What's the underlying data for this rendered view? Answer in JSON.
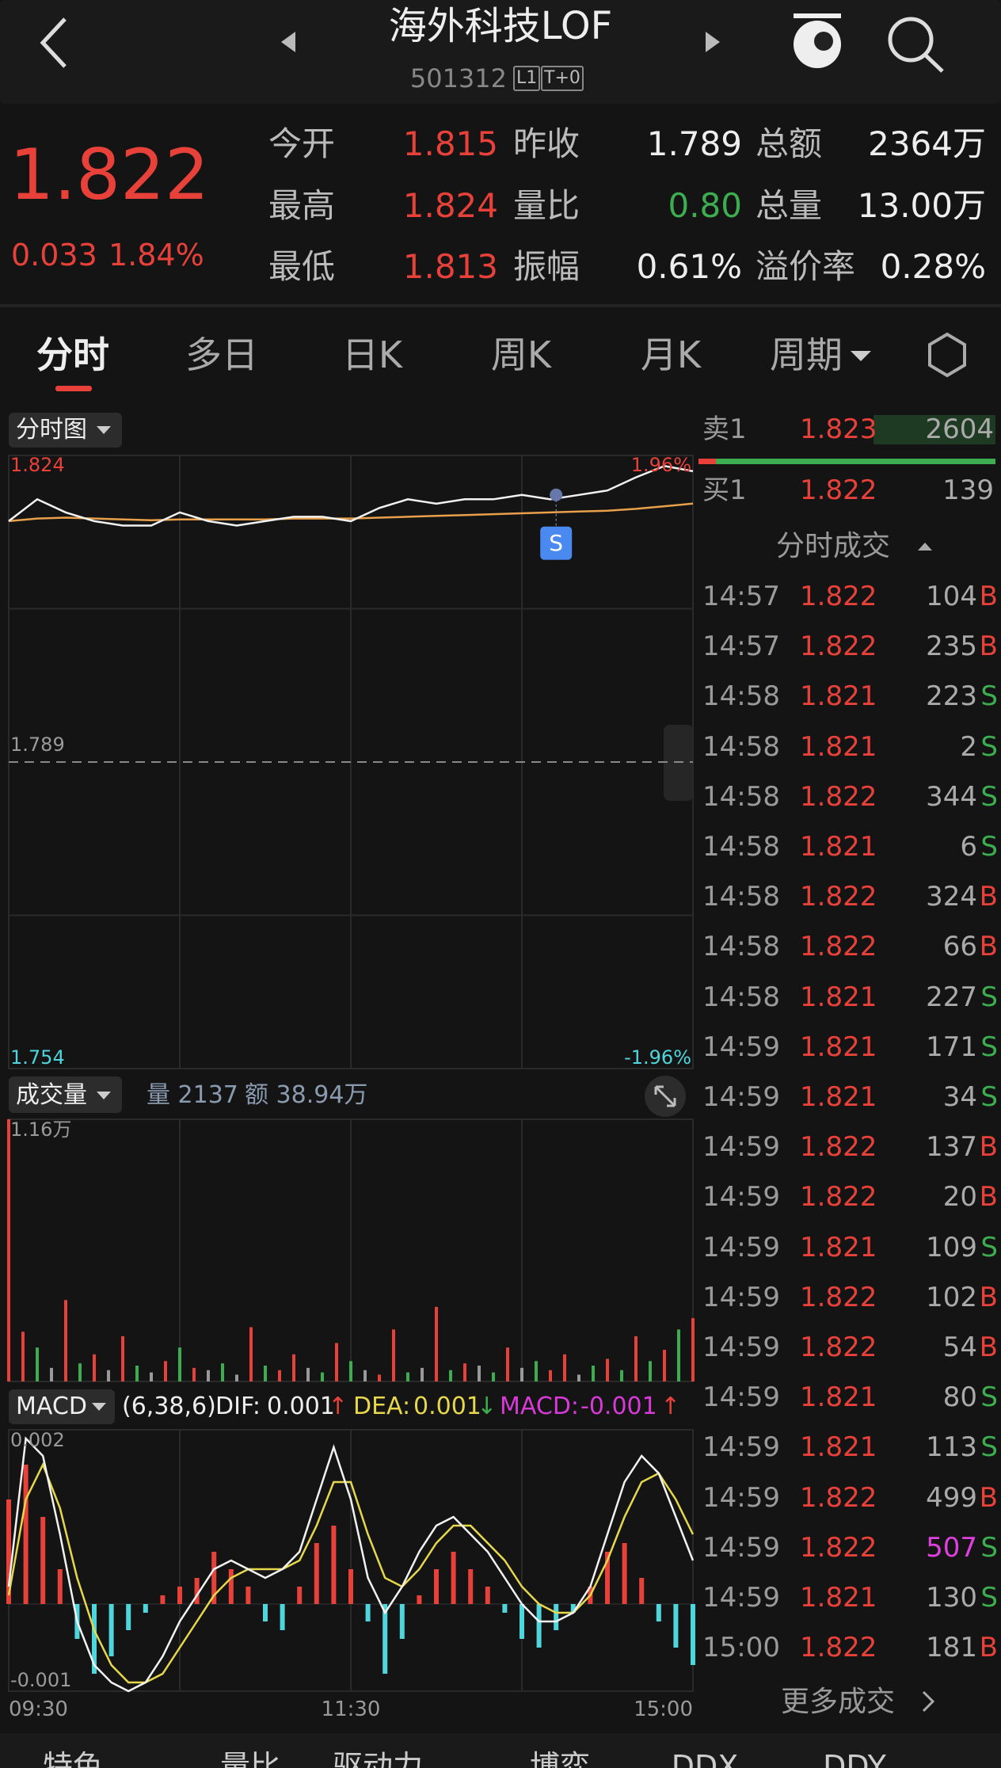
{
  "header": {
    "title": "海外科技LOF",
    "code": "501312",
    "badges": [
      "L1",
      "T+0"
    ]
  },
  "quote": {
    "price": "1.822",
    "change": "0.033",
    "change_pct": "1.84%",
    "stats": [
      [
        "今开",
        "1.815"
      ],
      [
        "昨收",
        "1.789"
      ],
      [
        "总额",
        "2364万"
      ],
      [
        "最高",
        "1.824"
      ],
      [
        "量比",
        "0.80"
      ],
      [
        "总量",
        "13.00万"
      ],
      [
        "最低",
        "1.813"
      ],
      [
        "振幅",
        "0.61%"
      ],
      [
        "溢价率",
        "0.28%"
      ]
    ]
  },
  "tabs": [
    "分时",
    "多日",
    "日K",
    "周K",
    "月K",
    "周期"
  ],
  "chart_data": [
    {
      "type": "line",
      "title": "分时图",
      "xlim": [
        0,
        240
      ],
      "ylim": [
        1.754,
        1.824
      ],
      "yticks": [
        1.754,
        1.789,
        1.824
      ],
      "y2lim": [
        -1.96,
        1.96
      ],
      "y2ticks": [
        {
          "value": -1.96,
          "label": "-1.96%"
        },
        {
          "value": 1.96,
          "label": "1.96%"
        }
      ],
      "x": [
        0,
        10,
        20,
        30,
        40,
        50,
        60,
        70,
        80,
        90,
        100,
        110,
        120,
        130,
        140,
        150,
        160,
        170,
        180,
        190,
        200,
        210,
        220,
        230,
        240
      ],
      "series": [
        {
          "color": "#f2f2f2",
          "values": [
            1.8165,
            1.819,
            1.8175,
            1.8165,
            1.816,
            1.816,
            1.8175,
            1.8165,
            1.816,
            1.8165,
            1.817,
            1.817,
            1.8165,
            1.818,
            1.819,
            1.8185,
            1.819,
            1.819,
            1.8195,
            1.819,
            1.8195,
            1.82,
            1.8215,
            1.8228,
            1.8222
          ]
        },
        {
          "color": "#e8a04a",
          "values": [
            1.8165,
            1.8168,
            1.8169,
            1.8168,
            1.8167,
            1.8166,
            1.8167,
            1.8167,
            1.8167,
            1.8167,
            1.8168,
            1.8168,
            1.8168,
            1.8169,
            1.817,
            1.8171,
            1.8172,
            1.8173,
            1.8174,
            1.8175,
            1.8176,
            1.8177,
            1.8179,
            1.8182,
            1.8185
          ]
        }
      ],
      "annotations": [
        {
          "text": "S",
          "x": 192,
          "y": 1.8195
        }
      ]
    },
    {
      "type": "bar",
      "title": "成交量",
      "volume_label": "量 2137",
      "amount_label": "额 38.94万",
      "xlim": [
        0,
        240
      ],
      "ylim": [
        0,
        11600
      ],
      "yticks": [
        {
          "value": 11600,
          "label": "1.16万"
        }
      ],
      "x": [
        0,
        5,
        10,
        15,
        20,
        25,
        30,
        35,
        40,
        45,
        50,
        55,
        60,
        65,
        70,
        75,
        80,
        85,
        90,
        95,
        100,
        105,
        110,
        115,
        120,
        125,
        130,
        135,
        140,
        145,
        150,
        155,
        160,
        165,
        170,
        175,
        180,
        185,
        190,
        195,
        200,
        205,
        210,
        215,
        220,
        225,
        230,
        235,
        240
      ],
      "values": [
        11600,
        2200,
        1500,
        600,
        3600,
        800,
        1200,
        500,
        2000,
        700,
        400,
        900,
        1500,
        600,
        500,
        800,
        300,
        2400,
        700,
        500,
        1200,
        600,
        400,
        1700,
        900,
        500,
        300,
        2300,
        400,
        600,
        3300,
        500,
        800,
        700,
        400,
        1500,
        600,
        900,
        500,
        1200,
        300,
        700,
        1000,
        500,
        2000,
        900,
        1400,
        2300,
        2800
      ],
      "colors": [
        "#e8413a",
        "#e8413a",
        "#3cae4f",
        "#999999",
        "#e8413a",
        "#3cae4f",
        "#e8413a",
        "#999999",
        "#e8413a",
        "#3cae4f",
        "#999999",
        "#e8413a",
        "#3cae4f",
        "#e8413a",
        "#999999",
        "#3cae4f",
        "#999999",
        "#e8413a",
        "#3cae4f",
        "#e8413a",
        "#e8413a",
        "#999999",
        "#3cae4f",
        "#e8413a",
        "#3cae4f",
        "#999999",
        "#e8413a",
        "#e8413a",
        "#3cae4f",
        "#999999",
        "#e8413a",
        "#3cae4f",
        "#e8413a",
        "#999999",
        "#3cae4f",
        "#e8413a",
        "#999999",
        "#3cae4f",
        "#e8413a",
        "#e8413a",
        "#999999",
        "#3cae4f",
        "#e8413a",
        "#3cae4f",
        "#e8413a",
        "#3cae4f",
        "#e8413a",
        "#3cae4f",
        "#e8413a"
      ]
    },
    {
      "type": "macd",
      "title": "MACD",
      "params": "(6,38,6)",
      "dif_label": "DIF:",
      "dif": "0.001",
      "dif_arrow": "↑",
      "dea_label": "DEA:",
      "dea": "0.001",
      "dea_arrow": "↓",
      "macd_label": "MACD:",
      "macd": "-0.001",
      "macd_arrow": "↑",
      "xlim": [
        0,
        240
      ],
      "xticks": [
        {
          "value": 0,
          "label": "09:30"
        },
        {
          "value": 120,
          "label": "11:30"
        },
        {
          "value": 240,
          "label": "15:00"
        }
      ],
      "ylim": [
        -0.001,
        0.002
      ],
      "yticks": [
        -0.001,
        0.002
      ],
      "bar_colors": {
        "positive": "#e8413a",
        "negative": "#4fd6dd"
      },
      "x": [
        0,
        6,
        12,
        18,
        24,
        30,
        36,
        42,
        48,
        54,
        60,
        66,
        72,
        78,
        84,
        90,
        96,
        102,
        108,
        114,
        120,
        126,
        132,
        138,
        144,
        150,
        156,
        162,
        168,
        174,
        180,
        186,
        192,
        198,
        204,
        210,
        216,
        222,
        228,
        234,
        240
      ],
      "values": [
        0.0012,
        0.0016,
        0.001,
        0.0004,
        -0.0004,
        -0.0008,
        -0.0006,
        -0.0003,
        -0.0001,
        0.0001,
        0.0002,
        0.0003,
        0.0006,
        0.0004,
        0.0002,
        -0.0002,
        -0.0003,
        0.0002,
        0.0007,
        0.0009,
        0.0004,
        -0.0002,
        -0.0008,
        -0.0004,
        0.0001,
        0.0004,
        0.0006,
        0.0004,
        0.0002,
        -0.0001,
        -0.0004,
        -0.0005,
        -0.0003,
        -0.0001,
        0.0002,
        0.0006,
        0.0007,
        0.0003,
        -0.0002,
        -0.0005,
        -0.0007
      ],
      "series": [
        {
          "color": "#f2f2f2",
          "values": [
            0.0002,
            0.0019,
            0.0017,
            0.0008,
            -0.0002,
            -0.0007,
            -0.0009,
            -0.001,
            -0.0009,
            -0.0006,
            -0.0002,
            0.0001,
            0.0004,
            0.0005,
            0.0004,
            0.0003,
            0.0004,
            0.0006,
            0.0012,
            0.0018,
            0.0012,
            0.0003,
            -0.0001,
            0.0002,
            0.0006,
            0.0009,
            0.001,
            0.0008,
            0.0006,
            0.0003,
            0,
            -0.0002,
            -0.0002,
            -0.0001,
            0.0002,
            0.0008,
            0.0014,
            0.0017,
            0.0015,
            0.001,
            0.0005
          ]
        },
        {
          "color": "#e6d84a",
          "values": [
            0.0001,
            0.0012,
            0.0016,
            0.0011,
            0.0003,
            -0.0003,
            -0.0007,
            -0.0009,
            -0.0009,
            -0.0008,
            -0.0005,
            -0.0002,
            0.0001,
            0.0003,
            0.0004,
            0.0004,
            0.0004,
            0.0005,
            0.0009,
            0.0014,
            0.0014,
            0.0008,
            0.0003,
            0.0002,
            0.0004,
            0.0007,
            0.0009,
            0.0009,
            0.0007,
            0.0005,
            0.0002,
            0,
            -0.0001,
            -0.0001,
            0.0001,
            0.0005,
            0.001,
            0.0014,
            0.0015,
            0.0012,
            0.0008
          ]
        }
      ]
    }
  ],
  "order_book": {
    "sell": {
      "label": "卖1",
      "price": "1.823",
      "volume": "2604"
    },
    "buy": {
      "label": "买1",
      "price": "1.822",
      "volume": "139"
    }
  },
  "trades": {
    "title": "分时成交",
    "rows": [
      [
        "14:57",
        "1.822",
        "104",
        "B"
      ],
      [
        "14:57",
        "1.822",
        "235",
        "B"
      ],
      [
        "14:58",
        "1.821",
        "223",
        "S"
      ],
      [
        "14:58",
        "1.821",
        "2",
        "S"
      ],
      [
        "14:58",
        "1.822",
        "344",
        "S"
      ],
      [
        "14:58",
        "1.821",
        "6",
        "S"
      ],
      [
        "14:58",
        "1.822",
        "324",
        "B"
      ],
      [
        "14:58",
        "1.822",
        "66",
        "B"
      ],
      [
        "14:58",
        "1.821",
        "227",
        "S"
      ],
      [
        "14:59",
        "1.821",
        "171",
        "S"
      ],
      [
        "14:59",
        "1.821",
        "34",
        "S"
      ],
      [
        "14:59",
        "1.822",
        "137",
        "B"
      ],
      [
        "14:59",
        "1.822",
        "20",
        "B"
      ],
      [
        "14:59",
        "1.821",
        "109",
        "S"
      ],
      [
        "14:59",
        "1.822",
        "102",
        "B"
      ],
      [
        "14:59",
        "1.822",
        "54",
        "B"
      ],
      [
        "14:59",
        "1.821",
        "80",
        "S"
      ],
      [
        "14:59",
        "1.821",
        "113",
        "S"
      ],
      [
        "14:59",
        "1.822",
        "499",
        "B"
      ],
      [
        "14:59",
        "1.822",
        "507",
        "S"
      ],
      [
        "14:59",
        "1.821",
        "130",
        "S"
      ],
      [
        "15:00",
        "1.822",
        "181",
        "B"
      ]
    ],
    "more": "更多成交"
  },
  "bottom_tabs": [
    "特色",
    "量比",
    "驱动力",
    "博弈",
    "DDX",
    "DDY"
  ]
}
